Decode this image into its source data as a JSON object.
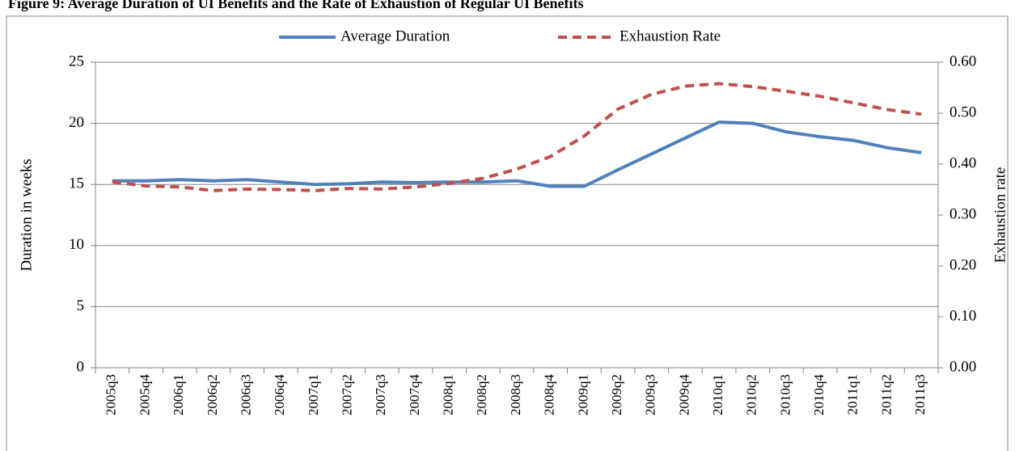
{
  "chart_data": {
    "type": "line",
    "title": "Figure 9: Average Duration of UI Benefits and the Rate of Exhaustion of Regular UI Benefits",
    "y_label": "Duration in weeks",
    "y2_label": "Exhaustion rate",
    "categories": [
      "2005q3",
      "2005q4",
      "2006q1",
      "2006q2",
      "2006q3",
      "2006q4",
      "2007q1",
      "2007q2",
      "2007q3",
      "2007q4",
      "2008q1",
      "2008q2",
      "2008q3",
      "2008q4",
      "2009q1",
      "2009q2",
      "2009q3",
      "2009q4",
      "2010q1",
      "2010q2",
      "2010q3",
      "2010q4",
      "2011q1",
      "2011q2",
      "2011q3"
    ],
    "series": [
      {
        "name": "Average Duration",
        "color": "#4f81bd",
        "dashed": false,
        "values": [
          15.3,
          15.3,
          15.4,
          15.3,
          15.4,
          15.2,
          15.0,
          15.05,
          15.2,
          15.15,
          15.2,
          15.2,
          15.3,
          14.85,
          14.85,
          16.2,
          17.5,
          18.8,
          20.1,
          20.0,
          19.3,
          18.9,
          18.6,
          18.0,
          17.6
        ]
      },
      {
        "name": "Exhaustion Rate",
        "color": "#c0504d",
        "dashed": true,
        "axis": "y2",
        "values": [
          0.365,
          0.357,
          0.355,
          0.348,
          0.351,
          0.35,
          0.348,
          0.352,
          0.351,
          0.355,
          0.362,
          0.372,
          0.39,
          0.415,
          0.455,
          0.508,
          0.537,
          0.553,
          0.558,
          0.552,
          0.543,
          0.533,
          0.52,
          0.507,
          0.498
        ]
      }
    ],
    "ylim": [
      0,
      25
    ],
    "yticks": [
      0,
      5,
      10,
      15,
      20,
      25
    ],
    "y2lim": [
      0,
      0.6
    ],
    "y2ticks": [
      {
        "value": 0,
        "label": "0.00"
      },
      {
        "value": 0.1,
        "label": "0.10"
      },
      {
        "value": 0.2,
        "label": "0.20"
      },
      {
        "value": 0.3,
        "label": "0.30"
      },
      {
        "value": 0.4,
        "label": "0.40"
      },
      {
        "value": 0.5,
        "label": "0.50"
      },
      {
        "value": 0.6,
        "label": "0.60"
      }
    ],
    "grid": true,
    "legend": "top"
  }
}
